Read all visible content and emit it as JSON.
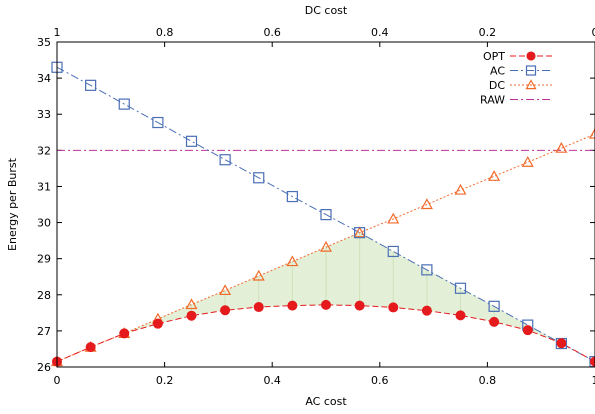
{
  "chart_data": {
    "type": "line",
    "xlabel": "AC cost",
    "x2label": "DC cost",
    "ylabel": "Energy per Burst",
    "xlim": [
      0,
      1
    ],
    "ylim": [
      26,
      35
    ],
    "x2lim": [
      1,
      0
    ],
    "xticks": [
      "0",
      "0.2",
      "0.4",
      "0.6",
      "0.8",
      "1"
    ],
    "x2ticks": [
      "1",
      "0.8",
      "0.6",
      "0.4",
      "0.2",
      "0"
    ],
    "yticks": [
      "26",
      "27",
      "28",
      "29",
      "30",
      "31",
      "32",
      "33",
      "34",
      "35"
    ],
    "legend_position": "top-right",
    "x": [
      0,
      0.0625,
      0.125,
      0.1875,
      0.25,
      0.3125,
      0.375,
      0.4375,
      0.5,
      0.5625,
      0.625,
      0.6875,
      0.75,
      0.8125,
      0.875,
      0.9375,
      1
    ],
    "series": [
      {
        "name": "OPT",
        "color": "#e41a1c",
        "style": "dashed",
        "marker": "circle",
        "values": [
          26.15,
          26.55,
          26.93,
          27.2,
          27.42,
          27.57,
          27.66,
          27.7,
          27.72,
          27.7,
          27.65,
          27.56,
          27.43,
          27.25,
          27.02,
          26.66,
          26.15
        ]
      },
      {
        "name": "AC",
        "color": "#4a6fb5",
        "style": "dashdot",
        "marker": "square",
        "values": [
          34.3,
          33.8,
          33.28,
          32.77,
          32.25,
          31.74,
          31.24,
          30.72,
          30.22,
          29.72,
          29.2,
          28.69,
          28.18,
          27.68,
          27.16,
          26.65,
          26.15
        ]
      },
      {
        "name": "DC",
        "color": "#f26a2a",
        "style": "dotted",
        "marker": "triangle",
        "values": [
          26.15,
          26.55,
          26.93,
          27.33,
          27.73,
          28.12,
          28.52,
          28.92,
          29.32,
          29.72,
          30.1,
          30.5,
          30.9,
          31.28,
          31.67,
          32.06,
          32.45
        ]
      },
      {
        "name": "RAW",
        "color": "#c0349a",
        "style": "dashdot",
        "marker": "none",
        "values": [
          32,
          32,
          32,
          32,
          32,
          32,
          32,
          32,
          32,
          32,
          32,
          32,
          32,
          32,
          32,
          32,
          32
        ]
      }
    ],
    "fill": {
      "color": "#e3efd6",
      "between": "OPT and min(AC, DC)"
    }
  }
}
